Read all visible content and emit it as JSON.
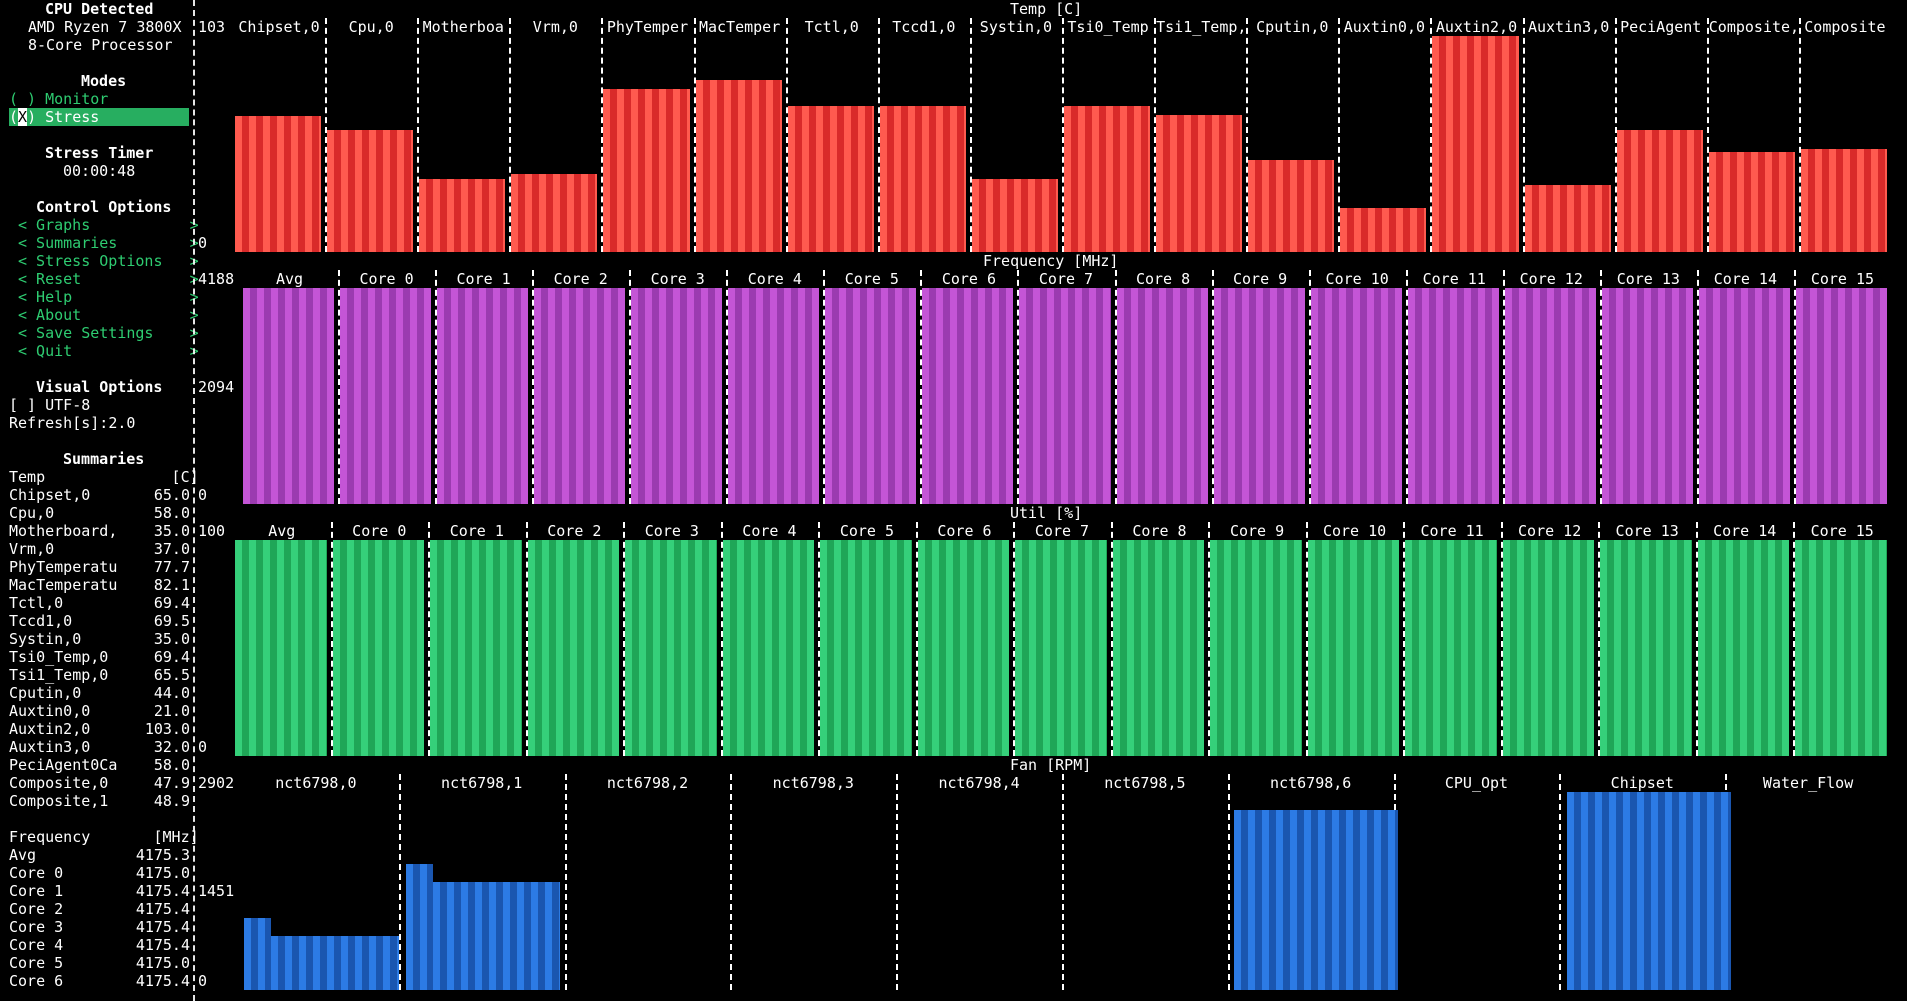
{
  "sidebar": {
    "cpu_title": "CPU Detected",
    "cpu_line1": "AMD Ryzen 7 3800X",
    "cpu_line2": "8-Core Processor",
    "modes_title": "Modes",
    "mode_monitor": "( ) Monitor",
    "mode_stress_prefix": "(",
    "mode_stress_x": "X",
    "mode_stress_suffix": ") Stress",
    "timer_title": "Stress Timer",
    "timer_value": "00:00:48",
    "control_title": "Control Options",
    "controls": [
      "< Graphs           >",
      "< Summaries        >",
      "< Stress Options   >",
      "< Reset            >",
      "< Help             >",
      "< About            >",
      "< Save Settings    >",
      "< Quit             >"
    ],
    "visual_title": "Visual Options",
    "utf8": "[ ] UTF-8",
    "refresh": "Refresh[s]:2.0",
    "summaries_title": "Summaries",
    "temp_header": "Temp              [C]",
    "temps": [
      [
        "Chipset,0",
        "65.0"
      ],
      [
        "Cpu,0",
        "58.0"
      ],
      [
        "Motherboard,",
        "35.0"
      ],
      [
        "Vrm,0",
        "37.0"
      ],
      [
        "PhyTemperatu",
        "77.7"
      ],
      [
        "MacTemperatu",
        "82.1"
      ],
      [
        "Tctl,0",
        "69.4"
      ],
      [
        "Tccd1,0",
        "69.5"
      ],
      [
        "Systin,0",
        "35.0"
      ],
      [
        "Tsi0_Temp,0",
        "69.4"
      ],
      [
        "Tsi1_Temp,0",
        "65.5"
      ],
      [
        "Cputin,0",
        "44.0"
      ],
      [
        "Auxtin0,0",
        "21.0"
      ],
      [
        "Auxtin2,0",
        "103.0"
      ],
      [
        "Auxtin3,0",
        "32.0"
      ],
      [
        "PeciAgent0Ca",
        "58.0"
      ],
      [
        "Composite,0",
        "47.9"
      ],
      [
        "Composite,1",
        "48.9"
      ]
    ],
    "freq_header": "Frequency       [MHz]",
    "freqs": [
      [
        "Avg",
        "4175.3"
      ],
      [
        "Core 0",
        "4175.0"
      ],
      [
        "Core 1",
        "4175.4"
      ],
      [
        "Core 2",
        "4175.4"
      ],
      [
        "Core 3",
        "4175.4"
      ],
      [
        "Core 4",
        "4175.4"
      ],
      [
        "Core 5",
        "4175.0"
      ],
      [
        "Core 6",
        "4175.4"
      ]
    ]
  },
  "temp_graph": {
    "title": "Temp [C]",
    "y_max": "103",
    "y_min": "0",
    "labels": [
      "Chipset,0",
      "Cpu,0",
      "Motherboa",
      "Vrm,0",
      "PhyTemper",
      "MacTemper",
      "Tctl,0",
      "Tccd1,0",
      "Systin,0",
      "Tsi0_Temp",
      "Tsi1_Temp,",
      "Cputin,0",
      "Auxtin0,0",
      "Auxtin2,0",
      "Auxtin3,0",
      "PeciAgent",
      "Composite,",
      "Composite"
    ],
    "values": [
      65.0,
      58.0,
      35.0,
      37.0,
      77.7,
      82.1,
      69.4,
      69.5,
      35.0,
      69.4,
      65.5,
      44.0,
      21.0,
      103.0,
      32.0,
      58.0,
      47.9,
      48.9
    ],
    "color": "#ff5a4f"
  },
  "freq_graph": {
    "title": "Frequency [MHz]",
    "y_max": "4188",
    "y_mid": "2094",
    "y_min": "0",
    "labels": [
      "Avg",
      "Core 0",
      "Core 1",
      "Core 2",
      "Core 3",
      "Core 4",
      "Core 5",
      "Core 6",
      "Core 7",
      "Core 8",
      "Core 9",
      "Core 10",
      "Core 11",
      "Core 12",
      "Core 13",
      "Core 14",
      "Core 15"
    ],
    "fill_fraction": 1.0,
    "color": "#c455d6"
  },
  "util_graph": {
    "title": "Util [%]",
    "y_max": "100",
    "y_min": "0",
    "labels": [
      "Avg",
      "Core 0",
      "Core 1",
      "Core 2",
      "Core 3",
      "Core 4",
      "Core 5",
      "Core 6",
      "Core 7",
      "Core 8",
      "Core 9",
      "Core 10",
      "Core 11",
      "Core 12",
      "Core 13",
      "Core 14",
      "Core 15"
    ],
    "fill_fraction": 1.0,
    "color": "#35d07a"
  },
  "fan_graph": {
    "title": "Fan [RPM]",
    "y_max": "2902",
    "y_mid": "1451",
    "y_min": "0",
    "labels": [
      "nct6798,0",
      "nct6798,1",
      "nct6798,2",
      "nct6798,3",
      "nct6798,4",
      "nct6798,5",
      "nct6798,6",
      "CPU_Opt",
      "Chipset",
      "Water_Flow"
    ],
    "color": "#2c7be5"
  }
}
